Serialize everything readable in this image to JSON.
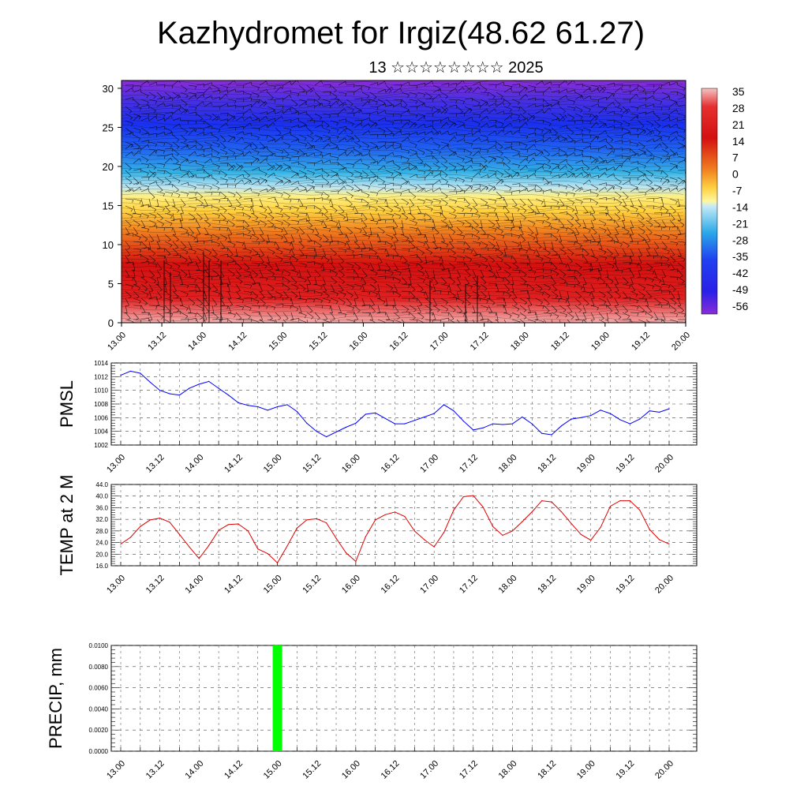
{
  "header": {
    "title": "Kazhydromet for Irgiz(48.62 61.27)",
    "subtitle": "13 ☆☆☆☆☆☆☆☆ 2025"
  },
  "chart_data": [
    {
      "id": "crosssection",
      "type": "heatmap",
      "xlabel": "",
      "ylabel": "",
      "x_ticks": [
        "13.00",
        "13.12",
        "14.00",
        "14.12",
        "15.00",
        "15.12",
        "16.00",
        "16.12",
        "17.00",
        "17.12",
        "18.00",
        "18.12",
        "19.00",
        "19.12",
        "20.00"
      ],
      "y_ticks": [
        0,
        5,
        10,
        15,
        20,
        25,
        30
      ],
      "ylim": [
        0,
        31
      ],
      "colorbar_labels": [
        35,
        28,
        21,
        14,
        7,
        0,
        -7,
        -14,
        -21,
        -28,
        -35,
        -42,
        -49,
        -56
      ],
      "colorbar_range": [
        -60,
        38
      ],
      "overlay": "wind barbs",
      "colors": {
        "hot": "#f4b6b6",
        "red": "#d41010",
        "orange": "#f6901a",
        "yellow": "#fff070",
        "lightblue": "#b6e4f4",
        "cyan": "#2aaee8",
        "blue": "#1a3cee",
        "violet": "#8a2cd8"
      }
    },
    {
      "id": "pmsl",
      "type": "line",
      "ylabel": "PMSL",
      "ylim": [
        1002,
        1014
      ],
      "y_ticks": [
        "1014",
        "1012",
        "1010",
        "1008",
        "1006",
        "1004",
        "1002"
      ],
      "x_ticks": [
        "13.00",
        "13.12",
        "14.00",
        "14.12",
        "15.00",
        "15.12",
        "16.00",
        "16.12",
        "17.00",
        "17.12",
        "18.00",
        "18.12",
        "19.00",
        "19.12",
        "20.00"
      ],
      "series": [
        {
          "color": "#0000ff",
          "x": [
            0,
            3,
            6,
            9,
            12,
            15,
            18,
            21,
            24,
            27,
            30,
            33,
            36,
            39,
            42,
            45,
            48,
            51,
            54,
            57,
            60,
            63,
            66,
            69,
            72,
            75,
            78,
            81,
            84,
            87,
            90,
            93,
            96,
            99,
            102,
            105,
            108,
            111,
            114,
            117,
            120,
            123,
            126,
            129,
            132,
            135,
            138,
            141,
            144,
            147,
            150,
            153,
            156,
            159,
            162,
            165,
            168
          ],
          "values": [
            1012.2,
            1012.8,
            1012.5,
            1011.2,
            1010.0,
            1009.5,
            1009.3,
            1010.3,
            1010.9,
            1011.3,
            1010.3,
            1009.3,
            1008.2,
            1007.8,
            1007.6,
            1007.1,
            1007.6,
            1007.9,
            1006.9,
            1005.2,
            1004.0,
            1003.2,
            1003.9,
            1004.6,
            1005.2,
            1006.5,
            1006.7,
            1005.9,
            1005.1,
            1005.1,
            1005.6,
            1006.1,
            1006.6,
            1007.9,
            1007.0,
            1005.5,
            1004.2,
            1004.5,
            1005.1,
            1005.0,
            1005.1,
            1006.1,
            1005.1,
            1003.7,
            1003.5,
            1004.8,
            1005.8,
            1006.0,
            1006.3,
            1007.1,
            1006.6,
            1005.7,
            1005.1,
            1005.8,
            1007.0,
            1006.8,
            1007.3
          ]
        }
      ]
    },
    {
      "id": "temp",
      "type": "line",
      "ylabel": "TEMP at 2 M",
      "ylim": [
        16,
        44
      ],
      "y_ticks": [
        "44.0",
        "40.0",
        "36.0",
        "32.0",
        "28.0",
        "24.0",
        "20.0",
        "16.0"
      ],
      "x_ticks": [
        "13.00",
        "13.12",
        "14.00",
        "14.12",
        "15.00",
        "15.12",
        "16.00",
        "16.12",
        "17.00",
        "17.12",
        "18.00",
        "18.12",
        "19.00",
        "19.12",
        "20.00"
      ],
      "series": [
        {
          "color": "#e00000",
          "x": [
            0,
            3,
            6,
            9,
            12,
            15,
            18,
            21,
            24,
            27,
            30,
            33,
            36,
            39,
            42,
            45,
            48,
            51,
            54,
            57,
            60,
            63,
            66,
            69,
            72,
            75,
            78,
            81,
            84,
            87,
            90,
            93,
            96,
            99,
            102,
            105,
            108,
            111,
            114,
            117,
            120,
            123,
            126,
            129,
            132,
            135,
            138,
            141,
            144,
            147,
            150,
            153,
            156,
            159,
            162,
            165,
            168
          ],
          "values": [
            23.5,
            25.8,
            29.5,
            31.8,
            32.4,
            31.0,
            26.8,
            22.5,
            18.5,
            23.0,
            28.2,
            30.2,
            30.4,
            28.0,
            21.8,
            20.2,
            17.0,
            22.8,
            29.0,
            31.8,
            32.2,
            30.8,
            25.5,
            20.5,
            17.5,
            26.0,
            31.8,
            33.6,
            34.5,
            33.0,
            28.0,
            25.0,
            22.5,
            27.5,
            35.2,
            39.8,
            40.2,
            36.2,
            29.5,
            26.5,
            28.0,
            31.2,
            34.6,
            38.4,
            38.0,
            34.6,
            30.6,
            26.8,
            24.8,
            29.2,
            36.5,
            38.4,
            38.4,
            35.2,
            28.5,
            25.0,
            23.5
          ]
        }
      ]
    },
    {
      "id": "precip",
      "type": "bar",
      "ylabel": "PRECIP, mm",
      "ylim": [
        0,
        0.01
      ],
      "y_ticks": [
        "0.0100",
        "0.0080",
        "0.0060",
        "0.0040",
        "0.0020",
        "0.0000"
      ],
      "x_ticks": [
        "13.00",
        "13.12",
        "14.00",
        "14.12",
        "15.00",
        "15.12",
        "16.00",
        "16.12",
        "17.00",
        "17.12",
        "18.00",
        "18.12",
        "19.00",
        "19.12",
        "20.00"
      ],
      "bars": [
        {
          "x": 48,
          "value": 0.01,
          "color": "#00ff00"
        }
      ]
    }
  ]
}
